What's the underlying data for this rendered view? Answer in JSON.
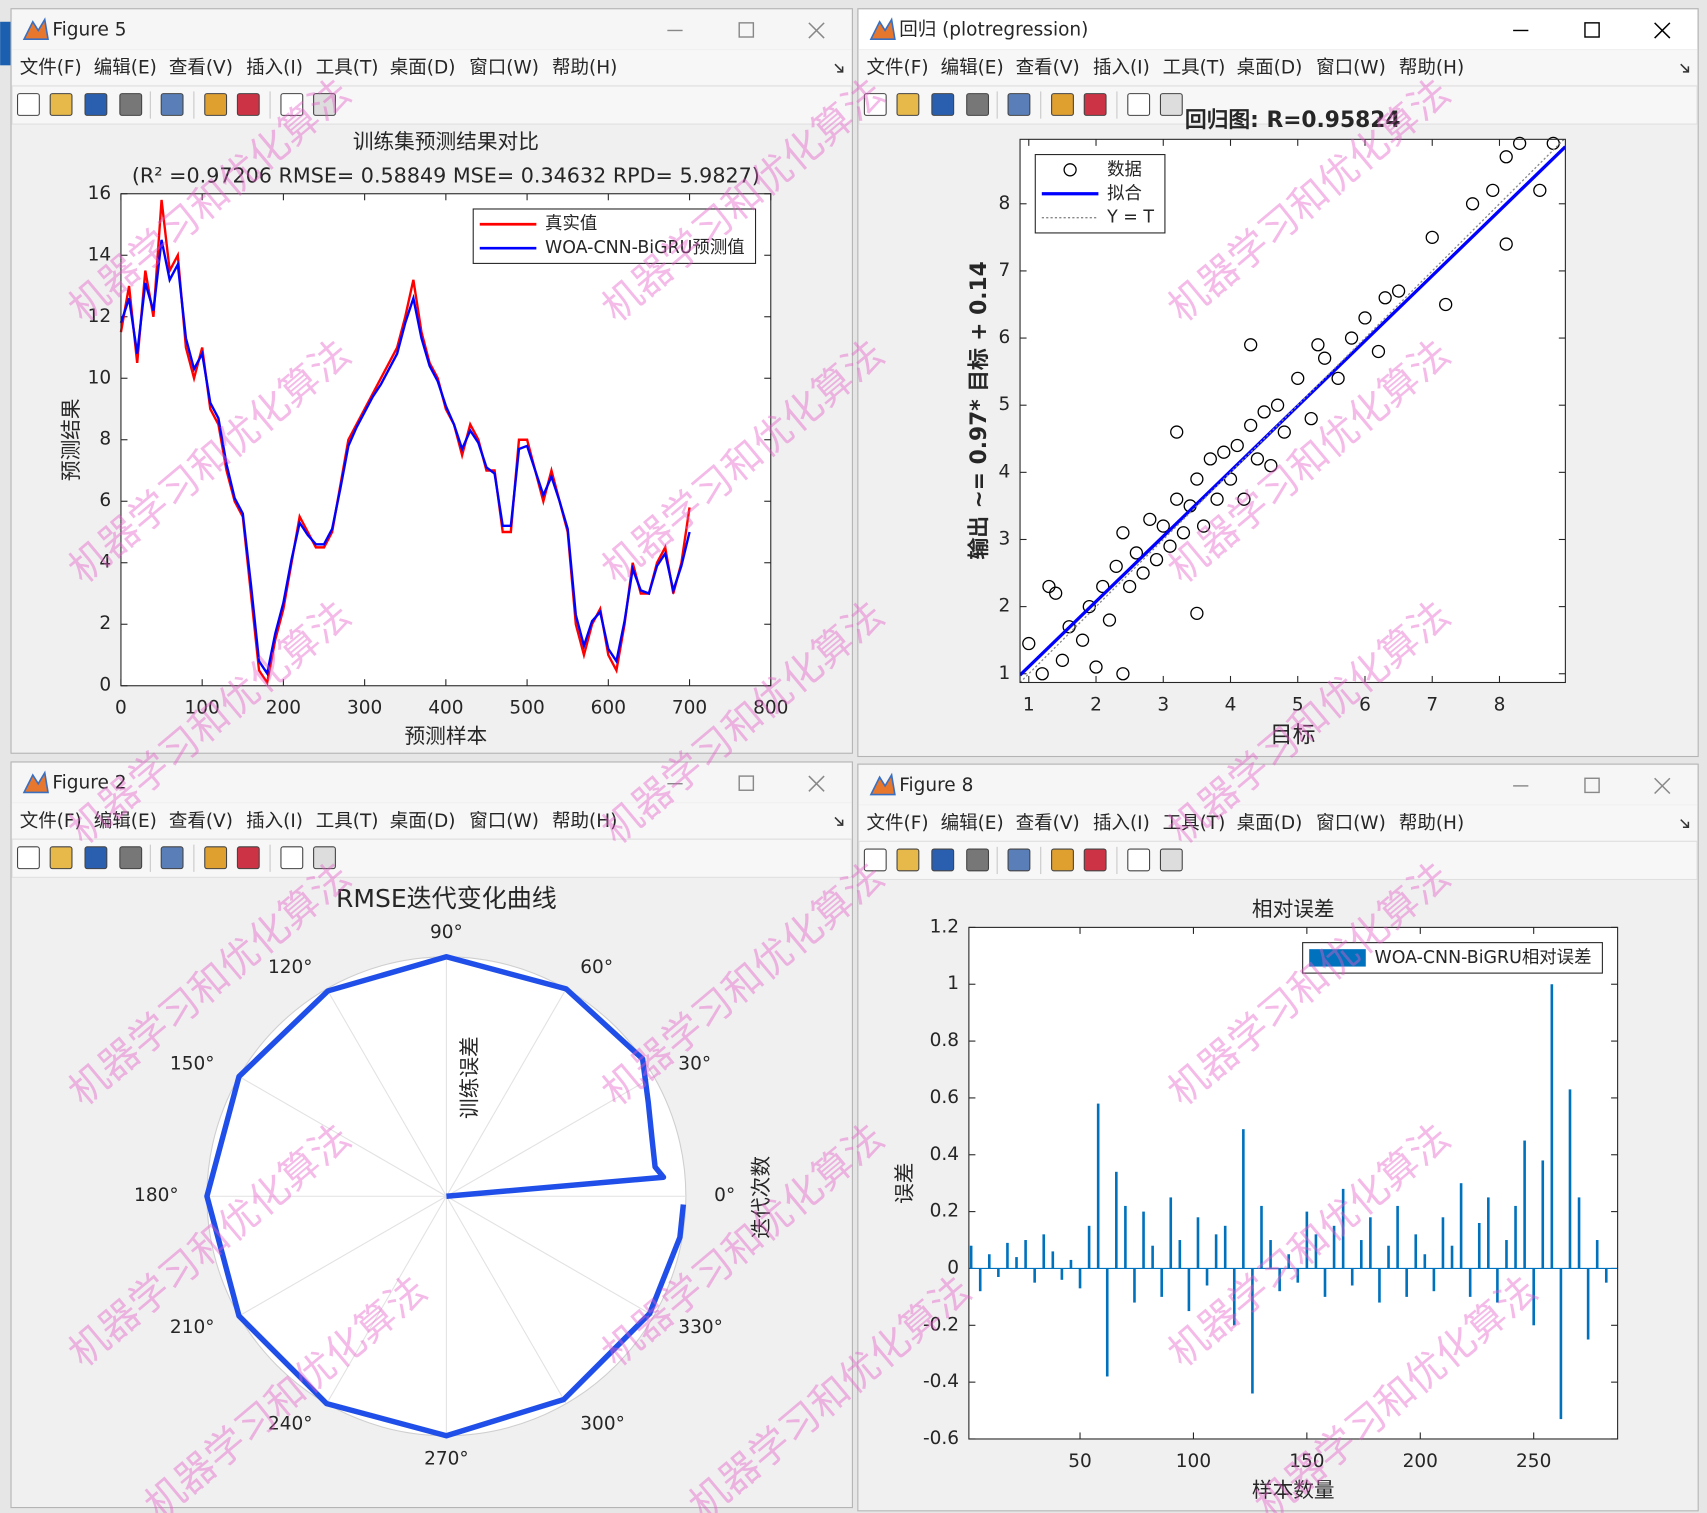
{
  "watermark": "机器学习和优化算法",
  "windows": [
    {
      "title": "Figure 5",
      "menu": [
        "文件(F)",
        "编辑(E)",
        "查看(V)",
        "插入(I)",
        "工具(T)",
        "桌面(D)",
        "窗口(W)",
        "帮助(H)"
      ]
    },
    {
      "title": "回归 (plotregression)",
      "menu": [
        "文件(F)",
        "编辑(E)",
        "查看(V)",
        "插入(I)",
        "工具(T)",
        "桌面(D)",
        "窗口(W)",
        "帮助(H)"
      ]
    },
    {
      "title": "Figure 2",
      "menu": [
        "文件(F)",
        "编辑(E)",
        "查看(V)",
        "插入(I)",
        "工具(T)",
        "桌面(D)",
        "窗口(W)",
        "帮助(H)"
      ]
    },
    {
      "title": "Figure 8",
      "menu": [
        "文件(F)",
        "编辑(E)",
        "查看(V)",
        "插入(I)",
        "工具(T)",
        "桌面(D)",
        "窗口(W)",
        "帮助(H)"
      ]
    }
  ],
  "chart_data": [
    {
      "type": "line",
      "title": "训练集预测结果对比",
      "subtitle": "(R² =0.97206 RMSE= 0.58849 MSE= 0.34632 RPD= 5.9827)",
      "xlabel": "预测样本",
      "ylabel": "预测结果",
      "legend": "northeast",
      "grid": false,
      "xlim": [
        0,
        800
      ],
      "xticks": [
        0,
        100,
        200,
        300,
        400,
        500,
        600,
        700,
        800
      ],
      "ylim": [
        0,
        16
      ],
      "yticks": [
        0,
        2,
        4,
        6,
        8,
        10,
        12,
        14,
        16
      ],
      "x": [
        0,
        10,
        20,
        30,
        40,
        50,
        60,
        70,
        80,
        90,
        100,
        110,
        120,
        130,
        140,
        150,
        160,
        170,
        180,
        190,
        200,
        210,
        220,
        230,
        240,
        250,
        260,
        270,
        280,
        290,
        300,
        310,
        320,
        330,
        340,
        350,
        360,
        370,
        380,
        390,
        400,
        410,
        420,
        430,
        440,
        450,
        460,
        470,
        480,
        490,
        500,
        510,
        520,
        530,
        540,
        550,
        560,
        570,
        580,
        590,
        600,
        610,
        620,
        630,
        640,
        650,
        660,
        670,
        680,
        690,
        700
      ],
      "series": [
        {
          "name": "真实值",
          "color": "#ff0000",
          "values": [
            11.5,
            13,
            10.5,
            13.5,
            12,
            15.8,
            13.5,
            14,
            11,
            10,
            11,
            9,
            8.5,
            7,
            6,
            5.5,
            3,
            0.5,
            0.1,
            1.5,
            2.5,
            4,
            5.5,
            5,
            4.5,
            4.5,
            5,
            6.5,
            8,
            8.5,
            9,
            9.5,
            10,
            10.5,
            11,
            12,
            13.2,
            11.5,
            10.5,
            10,
            9,
            8.5,
            7.5,
            8.5,
            8,
            7,
            7,
            5,
            5,
            8,
            8,
            7,
            6,
            7,
            6,
            5,
            2,
            1,
            2,
            2.5,
            1,
            0.5,
            2,
            4,
            3,
            3,
            4,
            4.5,
            3,
            4,
            5.8
          ]
        },
        {
          "name": "WOA-CNN-BiGRU预测值",
          "color": "#0000ff",
          "values": [
            11.8,
            12.6,
            10.8,
            13.1,
            12.2,
            14.5,
            13.2,
            13.7,
            11.3,
            10.3,
            10.8,
            9.2,
            8.7,
            7.2,
            6.1,
            5.6,
            3.3,
            0.8,
            0.4,
            1.7,
            2.7,
            4.1,
            5.3,
            4.9,
            4.6,
            4.6,
            5.1,
            6.4,
            7.8,
            8.4,
            8.9,
            9.4,
            9.8,
            10.3,
            10.8,
            11.8,
            12.6,
            11.3,
            10.4,
            9.9,
            9.1,
            8.5,
            7.7,
            8.3,
            7.9,
            7.1,
            6.9,
            5.2,
            5.2,
            7.7,
            7.8,
            7.0,
            6.2,
            6.8,
            6.0,
            5.1,
            2.3,
            1.3,
            2.1,
            2.4,
            1.2,
            0.8,
            2.1,
            3.8,
            3.1,
            3.0,
            3.9,
            4.3,
            3.1,
            3.9,
            5.0
          ]
        }
      ]
    },
    {
      "type": "scatter",
      "title": "回归图: R=0.95824",
      "xlabel": "目标",
      "ylabel": "输出 ~= 0.97* 目标 + 0.14",
      "legend": "northwest",
      "grid": false,
      "xlim": [
        0.87,
        8.98
      ],
      "xticks": [
        1,
        2,
        3,
        4,
        5,
        6,
        7,
        8
      ],
      "ylim": [
        0.87,
        8.96
      ],
      "yticks": [
        1,
        2,
        3,
        4,
        5,
        6,
        7,
        8
      ],
      "series": [
        {
          "name": "数据",
          "mode": "markers",
          "color": "#000000",
          "x": [
            1.0,
            1.3,
            1.4,
            1.5,
            1.6,
            1.8,
            1.9,
            2.0,
            2.1,
            2.2,
            2.3,
            2.4,
            2.5,
            2.6,
            2.7,
            2.8,
            2.9,
            3.0,
            3.1,
            3.2,
            3.3,
            3.4,
            3.5,
            3.6,
            3.7,
            3.8,
            3.9,
            4.0,
            4.1,
            4.2,
            4.3,
            4.4,
            4.5,
            4.6,
            4.7,
            4.8,
            5.0,
            5.2,
            5.4,
            5.6,
            5.8,
            6.0,
            6.2,
            6.3,
            6.5,
            7.0,
            7.2,
            7.6,
            7.9,
            8.1,
            8.1,
            8.3,
            8.6,
            8.8,
            3.2,
            3.5,
            2.4,
            5.3,
            4.3,
            1.2
          ],
          "values": [
            1.45,
            2.3,
            2.2,
            1.2,
            1.7,
            1.5,
            2.0,
            1.1,
            2.3,
            1.8,
            2.6,
            3.1,
            2.3,
            2.8,
            2.5,
            3.3,
            2.7,
            3.2,
            2.9,
            3.6,
            3.1,
            3.5,
            3.9,
            3.2,
            4.2,
            3.6,
            4.3,
            3.9,
            4.4,
            3.6,
            4.7,
            4.2,
            4.9,
            4.1,
            5.0,
            4.6,
            5.4,
            4.8,
            5.7,
            5.4,
            6.0,
            6.3,
            5.8,
            6.6,
            6.7,
            7.5,
            6.5,
            8.0,
            8.2,
            7.4,
            8.7,
            8.9,
            8.2,
            8.9,
            4.6,
            1.9,
            1.0,
            5.9,
            5.9,
            1.0
          ]
        },
        {
          "name": "拟合",
          "mode": "line",
          "color": "#0000ff",
          "x": [
            0.87,
            8.98
          ],
          "values": [
            0.98,
            8.85
          ]
        },
        {
          "name": "Y = T",
          "mode": "dotted",
          "color": "#888888",
          "x": [
            0.87,
            8.98
          ],
          "values": [
            0.87,
            8.98
          ]
        }
      ]
    },
    {
      "type": "polar",
      "title": "RMSE迭代变化曲线",
      "rlabel": "训练误差",
      "thetalabel": "迭代次数",
      "grid": true,
      "rlim": [
        0,
        1
      ],
      "thetaticks": [
        {
          "value": 0,
          "label": "0°"
        },
        {
          "value": 30,
          "label": "30°"
        },
        {
          "value": 60,
          "label": "60°"
        },
        {
          "value": 90,
          "label": "90°"
        },
        {
          "value": 120,
          "label": "120°"
        },
        {
          "value": 150,
          "label": "150°"
        },
        {
          "value": 180,
          "label": "180°"
        },
        {
          "value": 210,
          "label": "210°"
        },
        {
          "value": 240,
          "label": "240°"
        },
        {
          "value": 270,
          "label": "270°"
        },
        {
          "value": 300,
          "label": "300°"
        },
        {
          "value": 330,
          "label": "330°"
        }
      ],
      "series": [
        {
          "color": "#1f4fe8",
          "theta": [
            5,
            5,
            8,
            15,
            25,
            35,
            60,
            90,
            120,
            150,
            180,
            210,
            240,
            270,
            300,
            330,
            350,
            358
          ],
          "r": [
            0,
            0.91,
            0.88,
            0.89,
            0.93,
            1.0,
            1.0,
            1.0,
            0.99,
            1.0,
            1.0,
            1.0,
            1.0,
            1.0,
            0.98,
            0.98,
            0.99,
            0.99
          ]
        }
      ]
    },
    {
      "type": "bar",
      "title": "相对误差",
      "xlabel": "样本数量",
      "ylabel": "误差",
      "legend": "northeast",
      "grid": false,
      "xlim": [
        1,
        287
      ],
      "xticks": [
        50,
        100,
        150,
        200,
        250
      ],
      "ylim": [
        -0.6,
        1.2
      ],
      "yticks": [
        -0.6,
        -0.4,
        -0.2,
        0,
        0.2,
        0.4,
        0.6,
        0.8,
        1,
        1.2
      ],
      "x": [
        2,
        6,
        10,
        14,
        18,
        22,
        26,
        30,
        34,
        38,
        42,
        46,
        50,
        54,
        58,
        62,
        66,
        70,
        74,
        78,
        82,
        86,
        90,
        94,
        98,
        102,
        106,
        110,
        114,
        118,
        122,
        126,
        130,
        134,
        138,
        142,
        146,
        150,
        154,
        158,
        162,
        166,
        170,
        174,
        178,
        182,
        186,
        190,
        194,
        198,
        202,
        206,
        210,
        214,
        218,
        222,
        226,
        230,
        234,
        238,
        242,
        246,
        250,
        254,
        258,
        262,
        266,
        270,
        274,
        278,
        282
      ],
      "series": [
        {
          "name": "WOA-CNN-BiGRU相对误差",
          "color": "#0072bd",
          "values": [
            0.08,
            -0.08,
            0.05,
            -0.03,
            0.09,
            0.04,
            0.1,
            -0.05,
            0.12,
            0.06,
            -0.04,
            0.03,
            -0.07,
            0.15,
            0.58,
            -0.38,
            0.34,
            0.22,
            -0.12,
            0.2,
            0.08,
            -0.1,
            0.25,
            0.1,
            -0.15,
            0.18,
            -0.06,
            0.12,
            0.15,
            -0.2,
            0.49,
            -0.44,
            0.22,
            0.1,
            -0.08,
            0.05,
            -0.05,
            0.2,
            0.12,
            -0.1,
            0.15,
            0.28,
            -0.06,
            0.1,
            0.18,
            -0.12,
            0.08,
            0.22,
            -0.1,
            0.12,
            0.05,
            -0.08,
            0.18,
            0.08,
            0.3,
            -0.1,
            0.16,
            0.25,
            -0.12,
            0.1,
            0.22,
            0.45,
            -0.2,
            0.38,
            1.0,
            -0.53,
            0.63,
            0.25,
            -0.25,
            0.1,
            -0.05
          ]
        }
      ]
    }
  ]
}
